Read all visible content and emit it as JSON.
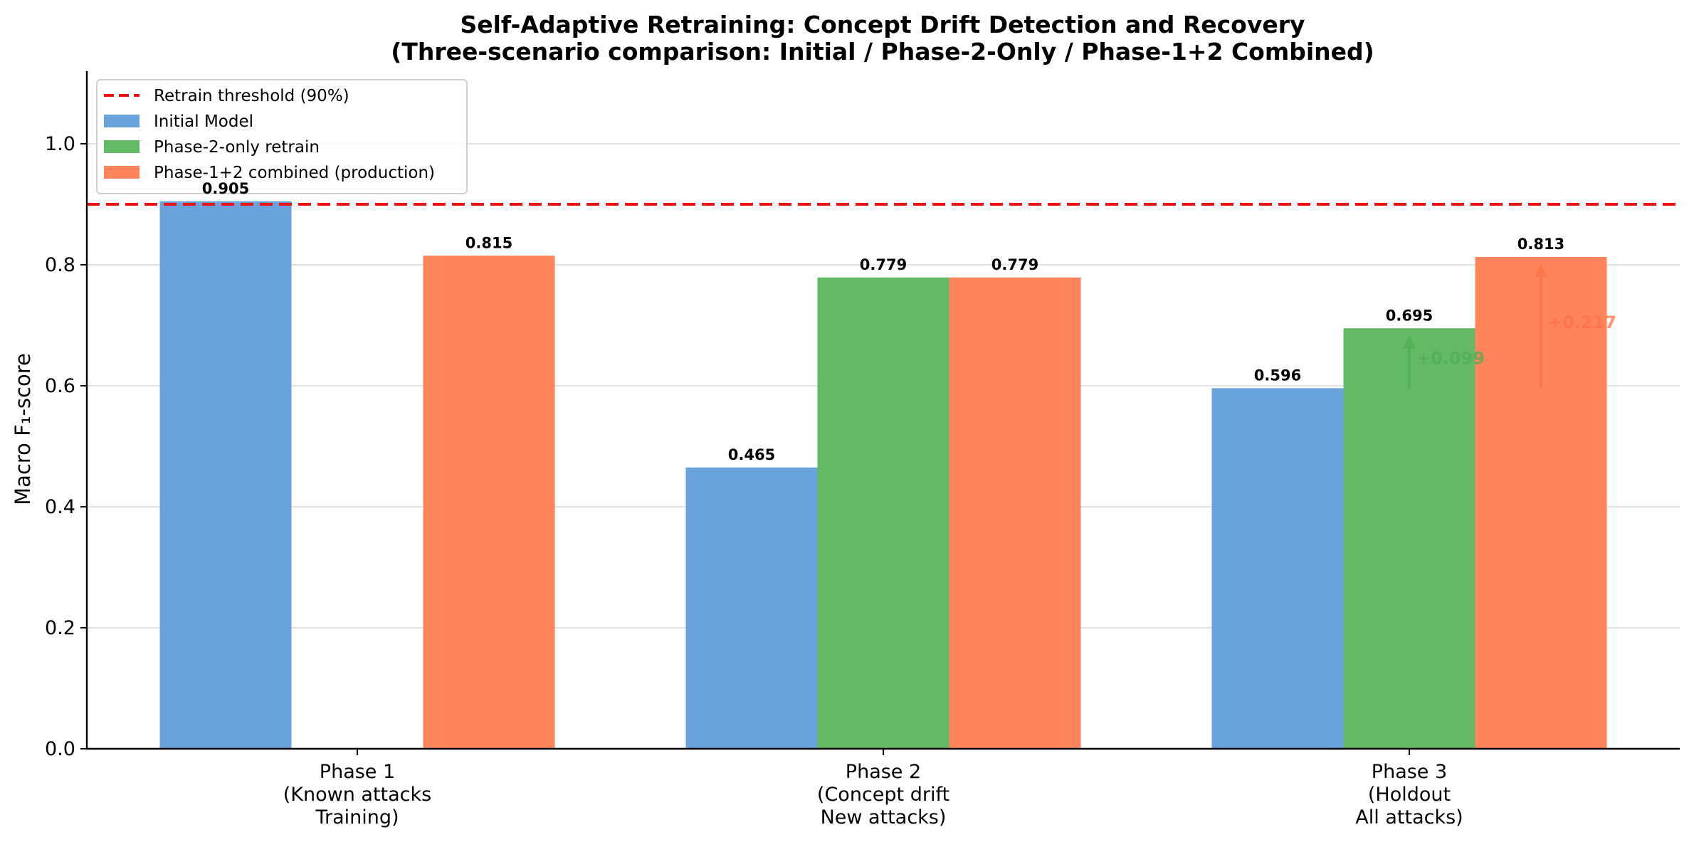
{
  "chart_data": {
    "type": "bar",
    "title": [
      "Self-Adaptive Retraining: Concept Drift Detection and Recovery",
      "(Three-scenario comparison: Initial / Phase-2-Only / Phase-1+2 Combined)"
    ],
    "xlabel": "",
    "ylabel": "Macro F₁-score",
    "ylim": [
      0,
      1.12
    ],
    "yticks": [
      "0.0",
      "0.2",
      "0.4",
      "0.6",
      "0.8",
      "1.0"
    ],
    "ytick_values": [
      0,
      0.2,
      0.4,
      0.6,
      0.8,
      1.0
    ],
    "grid": "horizontal",
    "legend_position": "top-left",
    "categories": [
      [
        "Phase 1",
        "(Known attacks",
        "Training)"
      ],
      [
        "Phase 2",
        "(Concept drift",
        "New attacks)"
      ],
      [
        "Phase 3",
        "(Holdout",
        "All attacks)"
      ]
    ],
    "series": [
      {
        "name": "Initial Model",
        "color": "#6aa3dc",
        "values": [
          0.905,
          0.465,
          0.596
        ],
        "labels": [
          "0.905",
          "0.465",
          "0.596"
        ]
      },
      {
        "name": "Phase-2-only retrain",
        "color": "#64b966",
        "values": [
          null,
          0.779,
          0.695
        ],
        "labels": [
          "",
          "0.779",
          "0.695"
        ]
      },
      {
        "name": "Phase-1+2 combined (production)",
        "color": "#ff845c",
        "values": [
          0.815,
          0.779,
          0.813
        ],
        "labels": [
          "0.815",
          "0.779",
          "0.813"
        ]
      }
    ],
    "threshold": {
      "name": "Retrain threshold (90%)",
      "value": 0.9,
      "color": "#ee1111",
      "style": "dashed"
    },
    "annotations": [
      {
        "text": "+0.099",
        "category_index": 2,
        "series_index": 1,
        "from": 0.596,
        "to": 0.695,
        "color": "#4caf50"
      },
      {
        "text": "+0.217",
        "category_index": 2,
        "series_index": 2,
        "from": 0.596,
        "to": 0.813,
        "color": "#ff7043"
      }
    ]
  }
}
